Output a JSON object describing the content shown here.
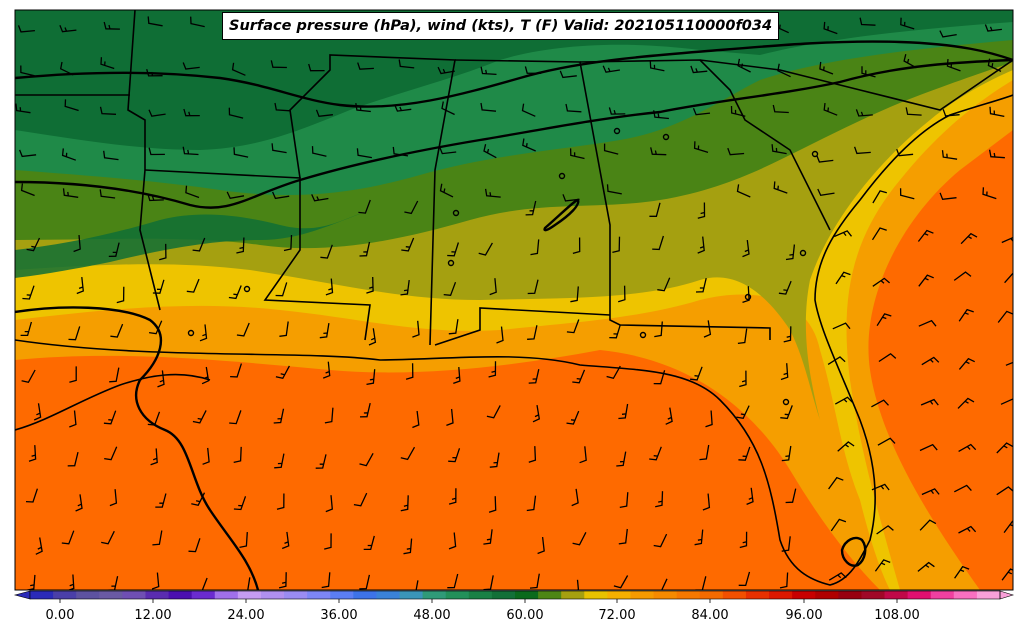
{
  "title": "Surface pressure (hPa), wind (kts), T (F) Valid: 202105110000f034",
  "colorbar": {
    "tick_labels": [
      "0.00",
      "12.00",
      "24.00",
      "36.00",
      "48.00",
      "60.00",
      "72.00",
      "84.00",
      "96.00",
      "108.00"
    ],
    "colors": [
      "#2b2bb8",
      "#4a3fa8",
      "#5d52a0",
      "#6a5aa3",
      "#6f4fb3",
      "#5a2cb0",
      "#4b10b0",
      "#6a2bd0",
      "#a070ea",
      "#c59cf2",
      "#b090f0",
      "#9a8cf2",
      "#7d86f5",
      "#5b7ef3",
      "#3d73e8",
      "#3a82d8",
      "#3a95b8",
      "#2f9a78",
      "#22905a",
      "#1a8045",
      "#127038",
      "#0a6a1c",
      "#4d8614",
      "#a5a010",
      "#e8c200",
      "#f5b000",
      "#f59a00",
      "#f58a00",
      "#f57800",
      "#f56a00",
      "#f25000",
      "#e83000",
      "#dc1800",
      "#c80000",
      "#b00000",
      "#980010",
      "#a00828",
      "#c00848",
      "#e01070",
      "#f040a0",
      "#f870c0",
      "#f8a0d8"
    ]
  },
  "colors": {
    "dark_green": "#0f6e35",
    "green": "#1f8a48",
    "olive_green": "#4a8415",
    "olive": "#a5a010",
    "yellow": "#eec400",
    "gold": "#f59e00",
    "orange": "#fe6a00"
  }
}
